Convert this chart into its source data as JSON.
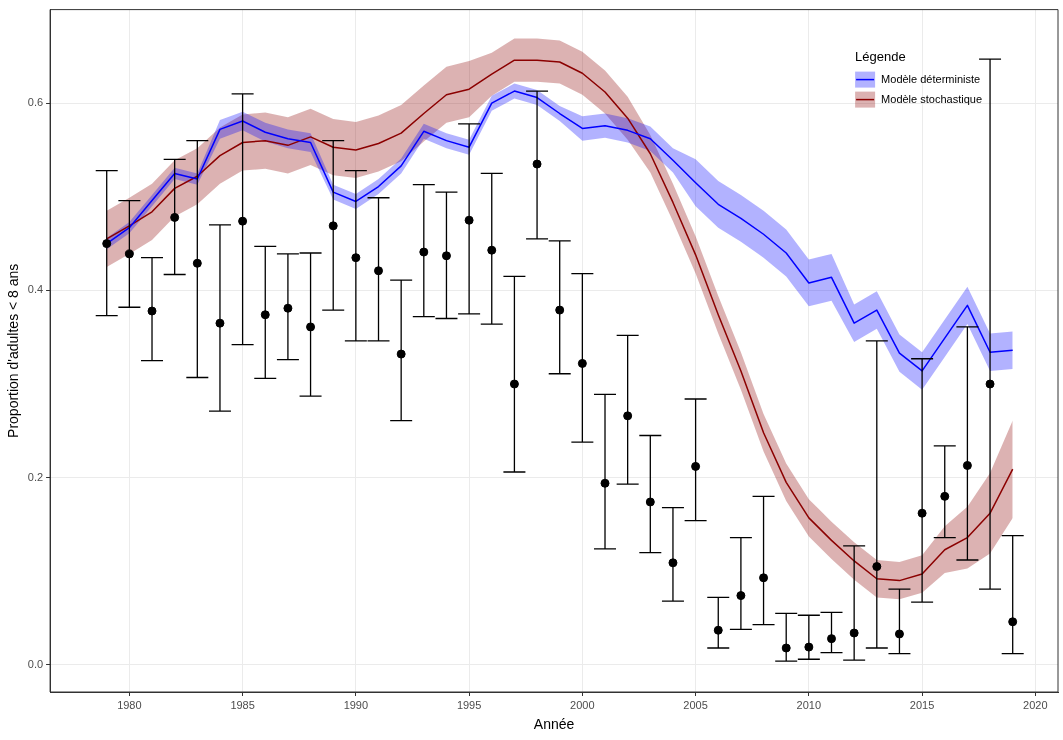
{
  "chart_data": {
    "type": "line",
    "xlabel": "Année",
    "ylabel": "Proportion d'adultes < 8 ans",
    "legend_title": "Légende",
    "legend": "top right",
    "grid": true,
    "x": [
      1979,
      1980,
      1981,
      1982,
      1983,
      1984,
      1985,
      1986,
      1987,
      1988,
      1989,
      1990,
      1991,
      1992,
      1993,
      1994,
      1995,
      1996,
      1997,
      1998,
      1999,
      2000,
      2001,
      2002,
      2003,
      2004,
      2005,
      2006,
      2007,
      2008,
      2009,
      2010,
      2011,
      2012,
      2013,
      2014,
      2015,
      2016,
      2017,
      2018,
      2019
    ],
    "xlim": [
      1976.5,
      2021
    ],
    "xticks": [
      1980,
      1985,
      1990,
      1995,
      2000,
      2005,
      2010,
      2015,
      2020
    ],
    "ylim": [
      -0.029,
      0.7
    ],
    "yticks": [
      {
        "value": 0,
        "label": "0.0"
      },
      {
        "value": 0.2,
        "label": "0.2"
      },
      {
        "value": 0.4,
        "label": "0.4"
      },
      {
        "value": 0.6,
        "label": "0.6"
      }
    ],
    "series": [
      {
        "name": "Modèle déterministe",
        "color": "#0000ff",
        "values": [
          0.45,
          0.467,
          0.496,
          0.525,
          0.519,
          0.572,
          0.581,
          0.569,
          0.562,
          0.558,
          0.505,
          0.495,
          0.511,
          0.533,
          0.57,
          0.56,
          0.553,
          0.6,
          0.613,
          0.606,
          0.589,
          0.573,
          0.576,
          0.571,
          0.562,
          0.539,
          0.515,
          0.492,
          0.477,
          0.46,
          0.44,
          0.408,
          0.414,
          0.365,
          0.379,
          0.333,
          0.314,
          0.349,
          0.384,
          0.334,
          0.336
        ],
        "lower": [
          0.444,
          0.461,
          0.49,
          0.519,
          0.513,
          0.562,
          0.571,
          0.559,
          0.552,
          0.548,
          0.497,
          0.487,
          0.503,
          0.525,
          0.562,
          0.552,
          0.545,
          0.592,
          0.605,
          0.598,
          0.581,
          0.56,
          0.563,
          0.558,
          0.549,
          0.526,
          0.49,
          0.467,
          0.452,
          0.435,
          0.415,
          0.383,
          0.389,
          0.345,
          0.359,
          0.313,
          0.294,
          0.329,
          0.364,
          0.314,
          0.316
        ],
        "upper": [
          0.456,
          0.473,
          0.502,
          0.531,
          0.525,
          0.582,
          0.591,
          0.579,
          0.572,
          0.568,
          0.513,
          0.503,
          0.519,
          0.541,
          0.578,
          0.568,
          0.561,
          0.608,
          0.621,
          0.614,
          0.597,
          0.586,
          0.589,
          0.584,
          0.575,
          0.552,
          0.54,
          0.517,
          0.502,
          0.485,
          0.465,
          0.433,
          0.439,
          0.385,
          0.399,
          0.353,
          0.334,
          0.369,
          0.404,
          0.354,
          0.356
        ]
      },
      {
        "name": "Modèle stochastique",
        "color": "#8b0000",
        "values": [
          0.455,
          0.469,
          0.484,
          0.509,
          0.522,
          0.544,
          0.558,
          0.56,
          0.555,
          0.564,
          0.553,
          0.55,
          0.557,
          0.568,
          0.589,
          0.609,
          0.615,
          0.631,
          0.646,
          0.646,
          0.644,
          0.632,
          0.612,
          0.584,
          0.546,
          0.494,
          0.438,
          0.374,
          0.314,
          0.248,
          0.195,
          0.157,
          0.133,
          0.111,
          0.092,
          0.09,
          0.097,
          0.123,
          0.136,
          0.162,
          0.209
        ],
        "lower": [
          0.425,
          0.439,
          0.454,
          0.479,
          0.492,
          0.514,
          0.528,
          0.53,
          0.525,
          0.534,
          0.523,
          0.52,
          0.527,
          0.538,
          0.559,
          0.579,
          0.585,
          0.608,
          0.623,
          0.623,
          0.621,
          0.609,
          0.589,
          0.561,
          0.526,
          0.474,
          0.418,
          0.354,
          0.294,
          0.228,
          0.175,
          0.137,
          0.113,
          0.091,
          0.072,
          0.07,
          0.077,
          0.098,
          0.103,
          0.119,
          0.157
        ],
        "upper": [
          0.485,
          0.499,
          0.514,
          0.539,
          0.552,
          0.574,
          0.588,
          0.59,
          0.585,
          0.594,
          0.583,
          0.58,
          0.587,
          0.598,
          0.619,
          0.639,
          0.645,
          0.654,
          0.669,
          0.669,
          0.667,
          0.655,
          0.635,
          0.607,
          0.566,
          0.514,
          0.458,
          0.394,
          0.334,
          0.268,
          0.215,
          0.177,
          0.153,
          0.131,
          0.112,
          0.11,
          0.117,
          0.148,
          0.169,
          0.205,
          0.261
        ]
      },
      {
        "type": "scatter",
        "color": "#000000",
        "marker": "circle",
        "values": [
          0.45,
          0.439,
          0.378,
          0.478,
          0.429,
          0.365,
          0.474,
          0.374,
          0.381,
          0.361,
          0.469,
          0.435,
          0.421,
          0.332,
          0.441,
          0.437,
          0.475,
          0.443,
          0.3,
          0.535,
          0.379,
          0.322,
          0.194,
          0.266,
          0.174,
          0.109,
          0.212,
          0.037,
          0.074,
          0.093,
          0.018,
          0.019,
          0.028,
          0.034,
          0.105,
          0.033,
          0.162,
          0.18,
          0.213,
          0.3,
          0.046
        ],
        "errors": [
          [
            0.373,
            0.528
          ],
          [
            0.382,
            0.496
          ],
          [
            0.325,
            0.435
          ],
          [
            0.417,
            0.54
          ],
          [
            0.307,
            0.56
          ],
          [
            0.271,
            0.47
          ],
          [
            0.342,
            0.61
          ],
          [
            0.306,
            0.447
          ],
          [
            0.326,
            0.439
          ],
          [
            0.287,
            0.44
          ],
          [
            0.379,
            0.56
          ],
          [
            0.346,
            0.528
          ],
          [
            0.346,
            0.499
          ],
          [
            0.261,
            0.411
          ],
          [
            0.372,
            0.513
          ],
          [
            0.37,
            0.505
          ],
          [
            0.375,
            0.578
          ],
          [
            0.364,
            0.525
          ],
          [
            0.206,
            0.415
          ],
          [
            0.455,
            0.613
          ],
          [
            0.311,
            0.453
          ],
          [
            0.238,
            0.418
          ],
          [
            0.124,
            0.289
          ],
          [
            0.193,
            0.352
          ],
          [
            0.12,
            0.245
          ],
          [
            0.068,
            0.168
          ],
          [
            0.154,
            0.284
          ],
          [
            0.018,
            0.072
          ],
          [
            0.038,
            0.136
          ],
          [
            0.043,
            0.18
          ],
          [
            0.004,
            0.055
          ],
          [
            0.006,
            0.053
          ],
          [
            0.013,
            0.056
          ],
          [
            0.005,
            0.127
          ],
          [
            0.018,
            0.346
          ],
          [
            0.012,
            0.081
          ],
          [
            0.067,
            0.327
          ],
          [
            0.136,
            0.234
          ],
          [
            0.112,
            0.361
          ],
          [
            0.081,
            0.647
          ],
          [
            0.012,
            0.138
          ]
        ]
      }
    ]
  }
}
